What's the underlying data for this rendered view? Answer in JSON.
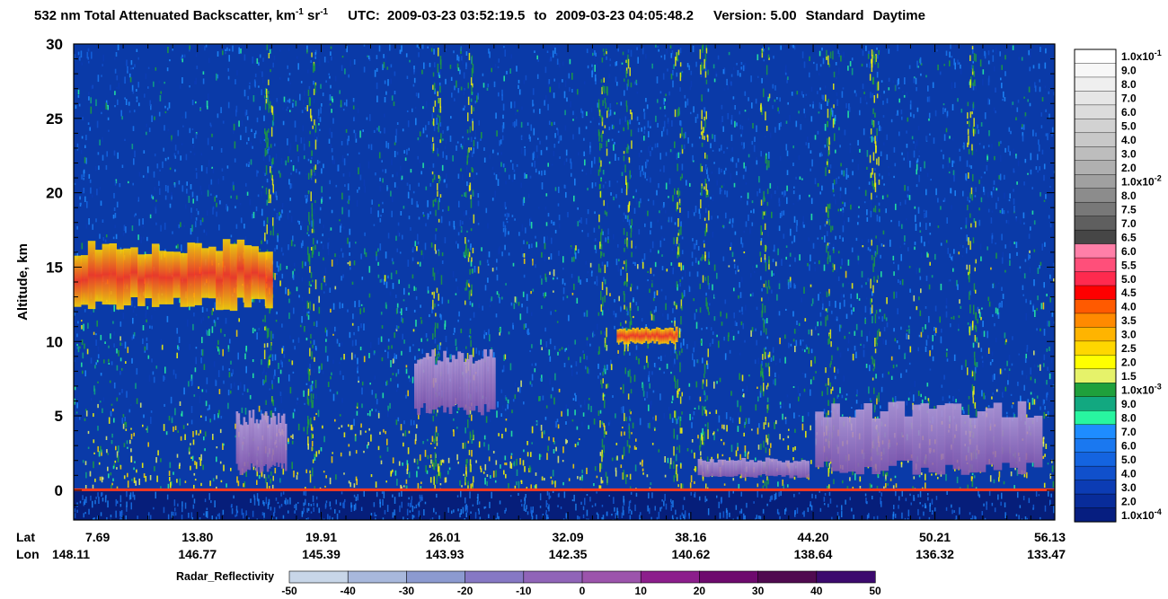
{
  "chart_data": {
    "type": "heatmap",
    "title": {
      "prefix": "532 nm Total Attenuated Backscatter, km",
      "km_exp": "-1",
      "sr": " sr",
      "sr_exp": "-1",
      "utc_label": "UTC:",
      "utc_start": "2009-03-23 03:52:19.5",
      "to": "to",
      "utc_end": "2009-03-23 04:05:48.2",
      "version": "Version: 5.00",
      "product": "Standard",
      "daytime": "Daytime"
    },
    "ylabel": "Altitude, km",
    "ylim": [
      -2,
      30
    ],
    "y_ticks": [
      0,
      5,
      10,
      15,
      20,
      25,
      30
    ],
    "x_row_labels": [
      "Lat",
      "Lon"
    ],
    "x_ticks": [
      {
        "lat": "7.69",
        "lon": "148.11"
      },
      {
        "lat": "13.80",
        "lon": "146.77"
      },
      {
        "lat": "19.91",
        "lon": "145.39"
      },
      {
        "lat": "26.01",
        "lon": "143.93"
      },
      {
        "lat": "32.09",
        "lon": "142.35"
      },
      {
        "lat": "38.16",
        "lon": "140.62"
      },
      {
        "lat": "44.20",
        "lon": "138.64"
      },
      {
        "lat": "50.21",
        "lon": "136.32"
      },
      {
        "lat": "56.13",
        "lon": "133.47"
      }
    ],
    "backscatter_colorbar": [
      {
        "label": "1.0x10",
        "exp": "-1",
        "color": "#ffffff"
      },
      {
        "label": "9.0",
        "color": "#f7f7f7"
      },
      {
        "label": "8.0",
        "color": "#efefef"
      },
      {
        "label": "7.0",
        "color": "#e6e6e6"
      },
      {
        "label": "6.0",
        "color": "#dcdcdc"
      },
      {
        "label": "5.0",
        "color": "#d2d2d2"
      },
      {
        "label": "4.0",
        "color": "#c8c8c8"
      },
      {
        "label": "3.0",
        "color": "#bdbdbd"
      },
      {
        "label": "2.0",
        "color": "#b0b0b0"
      },
      {
        "label": "1.0x10",
        "exp": "-2",
        "color": "#a0a0a0"
      },
      {
        "label": "8.0",
        "color": "#8c8c8c"
      },
      {
        "label": "7.5",
        "color": "#787878"
      },
      {
        "label": "7.0",
        "color": "#5f5f5f"
      },
      {
        "label": "6.5",
        "color": "#464646"
      },
      {
        "label": "6.0",
        "color": "#ff7fa8"
      },
      {
        "label": "5.5",
        "color": "#ff4f7a"
      },
      {
        "label": "5.0",
        "color": "#ff2a4e"
      },
      {
        "label": "4.5",
        "color": "#ff0000"
      },
      {
        "label": "4.0",
        "color": "#ff5a00"
      },
      {
        "label": "3.5",
        "color": "#ff8a00"
      },
      {
        "label": "3.0",
        "color": "#ffb400"
      },
      {
        "label": "2.5",
        "color": "#ffd700"
      },
      {
        "label": "2.0",
        "color": "#ffff00"
      },
      {
        "label": "1.5",
        "color": "#e6f26a"
      },
      {
        "label": "1.0x10",
        "exp": "-3",
        "color": "#1fa03c"
      },
      {
        "label": "9.0",
        "color": "#12a880"
      },
      {
        "label": "8.0",
        "color": "#28f5a0"
      },
      {
        "label": "7.0",
        "color": "#1e8cff"
      },
      {
        "label": "6.0",
        "color": "#1a78f0"
      },
      {
        "label": "5.0",
        "color": "#1464e0"
      },
      {
        "label": "4.0",
        "color": "#1050cc"
      },
      {
        "label": "3.0",
        "color": "#0c3cb4"
      },
      {
        "label": "2.0",
        "color": "#082c9a"
      },
      {
        "label": "1.0x10",
        "exp": "-4",
        "color": "#061e80"
      }
    ],
    "radar_colorbar": {
      "label": "Radar_Reflectivity",
      "ticks": [
        "-50",
        "-40",
        "-30",
        "-20",
        "-10",
        "0",
        "10",
        "20",
        "30",
        "40",
        "50"
      ],
      "colors": [
        "#c8d6e8",
        "#a8b8dc",
        "#8c9ad0",
        "#8678c4",
        "#9064b8",
        "#9c54ac",
        "#8c1e8c",
        "#6e0a6e",
        "#500a50",
        "#3c0a6e"
      ]
    },
    "features": [
      {
        "name": "cirrus",
        "lat_start": 7.69,
        "lat_end": 17.5,
        "alt_bottom": 12,
        "alt_top": 17
      },
      {
        "name": "cloud",
        "lat_start": 34.5,
        "lat_end": 37.5,
        "alt_bottom": 9.8,
        "alt_top": 11
      },
      {
        "name": "radar-echo",
        "lat_start": 24.5,
        "lat_end": 28.5,
        "alt_bottom": 5,
        "alt_top": 9.5
      },
      {
        "name": "radar-echo",
        "lat_start": 15.7,
        "lat_end": 18.2,
        "alt_bottom": 1,
        "alt_top": 5.5
      },
      {
        "name": "radar-echo",
        "lat_start": 38.5,
        "lat_end": 44.0,
        "alt_bottom": 0.8,
        "alt_top": 2.2
      },
      {
        "name": "radar-echo",
        "lat_start": 44.3,
        "lat_end": 55.5,
        "alt_bottom": 1.0,
        "alt_top": 6.0
      }
    ],
    "colors": {
      "background": "#0a3aa8",
      "surface": "#ff3a1e",
      "below_surface": "#061e7a"
    }
  }
}
